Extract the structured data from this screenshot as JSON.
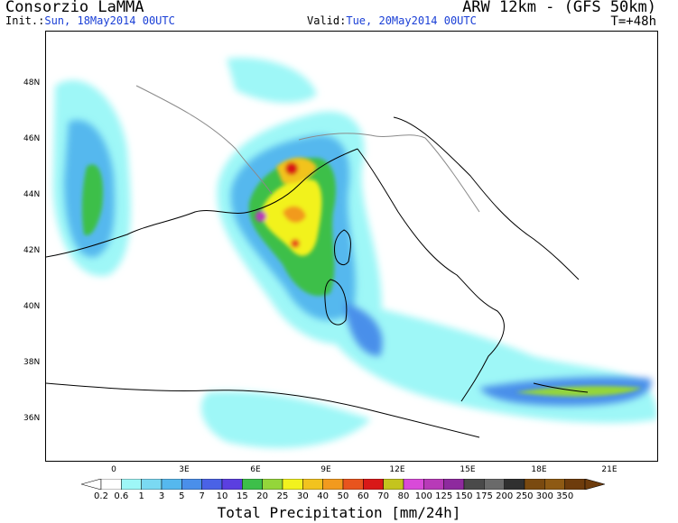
{
  "header": {
    "title_left": "Consorzio LaMMA",
    "title_right": "ARW 12km - (GFS 50km)",
    "init_prefix": "Init.:",
    "init_value": "Sun, 18May2014 00UTC",
    "valid_prefix": "Valid:",
    "valid_value": "Tue, 20May2014 00UTC",
    "timestep": "T=+48h"
  },
  "axes": {
    "lat_labels": [
      "48N",
      "46N",
      "44N",
      "42N",
      "40N",
      "38N",
      "36N"
    ],
    "lon_labels": [
      "0",
      "3E",
      "6E",
      "9E",
      "12E",
      "15E",
      "18E",
      "21E"
    ]
  },
  "colorbar": {
    "title": "Total Precipitation [mm/24h]",
    "labels": [
      "0.2",
      "0.6",
      "1",
      "3",
      "5",
      "7",
      "10",
      "15",
      "20",
      "25",
      "30",
      "40",
      "50",
      "60",
      "70",
      "80",
      "100",
      "125",
      "150",
      "175",
      "200",
      "250",
      "300",
      "350"
    ],
    "colors": [
      "#ffffff",
      "#9ef7f7",
      "#7ad9f2",
      "#55b8ee",
      "#4a8fea",
      "#4a62e6",
      "#5b3fe0",
      "#3dbf4a",
      "#94d63a",
      "#f2f21e",
      "#f2c31e",
      "#f29a1e",
      "#e8541e",
      "#d91818",
      "#c4c41e",
      "#d94ad9",
      "#b83ab8",
      "#8e2a9e",
      "#4a4a4a",
      "#6a6a6a",
      "#303030",
      "#7a4a10",
      "#8e5a14",
      "#6e3c0c"
    ]
  },
  "map": {
    "lat_range": [
      34.5,
      49.8
    ],
    "lon_range": [
      -2.5,
      23.0
    ]
  }
}
